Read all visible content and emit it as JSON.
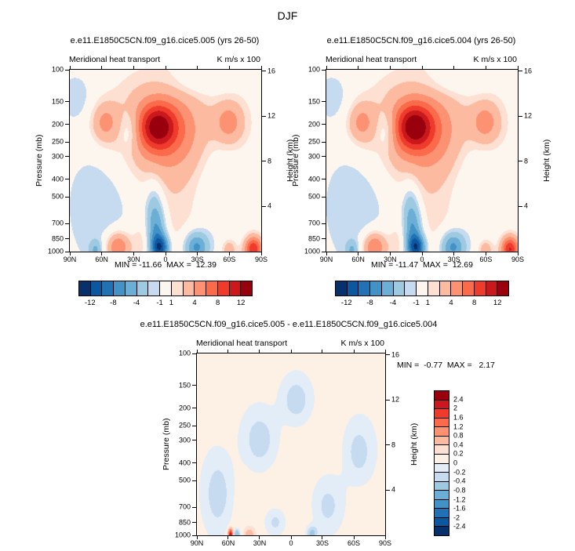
{
  "page_title": "DJF",
  "shared": {
    "subtitle_left": "Meridional heat transport",
    "subtitle_right": "K m/s x 100",
    "ylabel_left": "Pressure (mb)",
    "ylabel_right": "Height (km)",
    "pressure_ticks": [
      100,
      150,
      200,
      250,
      300,
      400,
      500,
      700,
      850,
      1000
    ],
    "height_ticks": [
      16,
      12,
      8,
      4
    ],
    "lat_ticks": [
      "90N",
      "60N",
      "30N",
      "0",
      "30S",
      "60S",
      "90S"
    ]
  },
  "chart_data": [
    {
      "type": "heatmap",
      "title": "e.e11.E1850C5CN.f09_g16.cice5.005 (yrs 26-50)",
      "subtitle": "Meridional heat transport",
      "units": "K m/s x 100",
      "x_axis": "latitude 90N to 90S",
      "y_axis": "pressure (mb), log scale 100-1000",
      "min": -11.66,
      "max": 12.39,
      "minmax_label": "MIN = -11.66  MAX =  12.39",
      "levels": [
        -12,
        -10,
        -8,
        -6,
        -4,
        -2,
        -1,
        1,
        2,
        4,
        6,
        8,
        10,
        12
      ],
      "colors": [
        "#08306b",
        "#0d57a1",
        "#2171b5",
        "#4292c6",
        "#6baed6",
        "#9ecae1",
        "#c6dbef",
        "#fdf6ee",
        "#fee0d2",
        "#fcbba1",
        "#fc9272",
        "#fb6a4a",
        "#ef3b2c",
        "#cb181d",
        "#99000d"
      ],
      "cbar_labels": [
        "-12",
        "-8",
        "-4",
        "-1",
        "1",
        "4",
        "8",
        "12"
      ],
      "features": [
        {
          "lat": 7,
          "p": 205,
          "amp": 8.0,
          "slat": 12,
          "sp": 0.085
        },
        {
          "lat": 5,
          "p": 215,
          "amp": 4.5,
          "slat": 30,
          "sp": 0.16
        },
        {
          "lat": 0,
          "p": 200,
          "amp": 1.6,
          "slat": 55,
          "sp": 0.25
        },
        {
          "lat": 58,
          "p": 195,
          "amp": 4.0,
          "slat": 9,
          "sp": 0.08
        },
        {
          "lat": -60,
          "p": 195,
          "amp": 4.5,
          "slat": 10,
          "sp": 0.085
        },
        {
          "lat": 34,
          "p": 215,
          "amp": -3.0,
          "slat": 7,
          "sp": 0.08
        },
        {
          "lat": 5,
          "p": 960,
          "amp": -10.0,
          "slat": 6,
          "sp": 0.05
        },
        {
          "lat": 8,
          "p": 780,
          "amp": -5.0,
          "slat": 6,
          "sp": 0.1
        },
        {
          "lat": 11,
          "p": 580,
          "amp": -3.0,
          "slat": 6,
          "sp": 0.12
        },
        {
          "lat": 45,
          "p": 950,
          "amp": 7.0,
          "slat": 8,
          "sp": 0.06
        },
        {
          "lat": -29,
          "p": 950,
          "amp": -7.0,
          "slat": 8,
          "sp": 0.06
        },
        {
          "lat": -83,
          "p": 975,
          "amp": 10.0,
          "slat": 6,
          "sp": 0.05
        },
        {
          "lat": -60,
          "p": 975,
          "amp": 3.5,
          "slat": 5,
          "sp": 0.04
        },
        {
          "lat": 66,
          "p": 985,
          "amp": -3.5,
          "slat": 4,
          "sp": 0.035
        },
        {
          "lat": 60,
          "p": 480,
          "amp": -2.0,
          "slat": 28,
          "sp": 0.35
        },
        {
          "lat": 85,
          "p": 140,
          "amp": -1.8,
          "slat": 12,
          "sp": 0.1
        },
        {
          "lat": -48,
          "p": 420,
          "amp": -1.8,
          "slat": 16,
          "sp": 0.3
        },
        {
          "lat": -30,
          "p": 115,
          "amp": -1.6,
          "slat": 20,
          "sp": 0.06
        },
        {
          "lat": -12,
          "p": 600,
          "amp": 1.4,
          "slat": 28,
          "sp": 0.35
        },
        {
          "lat": 24,
          "p": 900,
          "amp": 1.6,
          "slat": 6,
          "sp": 0.08
        }
      ]
    },
    {
      "type": "heatmap",
      "title": "e.e11.E1850C5CN.f09_g16.cice5.004 (yrs 26-50)",
      "subtitle": "Meridional heat transport",
      "units": "K m/s x 100",
      "x_axis": "latitude 90N to 90S",
      "y_axis": "pressure (mb), log scale 100-1000",
      "min": -11.47,
      "max": 12.69,
      "minmax_label": "MIN = -11.47  MAX =  12.69",
      "levels": [
        -12,
        -10,
        -8,
        -6,
        -4,
        -2,
        -1,
        1,
        2,
        4,
        6,
        8,
        10,
        12
      ],
      "colors": [
        "#08306b",
        "#0d57a1",
        "#2171b5",
        "#4292c6",
        "#6baed6",
        "#9ecae1",
        "#c6dbef",
        "#fdf6ee",
        "#fee0d2",
        "#fcbba1",
        "#fc9272",
        "#fb6a4a",
        "#ef3b2c",
        "#cb181d",
        "#99000d"
      ],
      "cbar_labels": [
        "-12",
        "-8",
        "-4",
        "-1",
        "1",
        "4",
        "8",
        "12"
      ],
      "features": [
        {
          "lat": 7,
          "p": 205,
          "amp": 8.3,
          "slat": 12,
          "sp": 0.085
        },
        {
          "lat": 5,
          "p": 215,
          "amp": 4.5,
          "slat": 30,
          "sp": 0.16
        },
        {
          "lat": 0,
          "p": 200,
          "amp": 1.6,
          "slat": 55,
          "sp": 0.25
        },
        {
          "lat": 58,
          "p": 195,
          "amp": 4.0,
          "slat": 9,
          "sp": 0.08
        },
        {
          "lat": -60,
          "p": 195,
          "amp": 4.5,
          "slat": 10,
          "sp": 0.085
        },
        {
          "lat": 34,
          "p": 215,
          "amp": -3.0,
          "slat": 7,
          "sp": 0.08
        },
        {
          "lat": 5,
          "p": 960,
          "amp": -9.8,
          "slat": 6,
          "sp": 0.05
        },
        {
          "lat": 8,
          "p": 780,
          "amp": -5.0,
          "slat": 6,
          "sp": 0.1
        },
        {
          "lat": 11,
          "p": 580,
          "amp": -3.0,
          "slat": 6,
          "sp": 0.12
        },
        {
          "lat": 45,
          "p": 950,
          "amp": 7.0,
          "slat": 8,
          "sp": 0.06
        },
        {
          "lat": -29,
          "p": 950,
          "amp": -7.0,
          "slat": 8,
          "sp": 0.06
        },
        {
          "lat": -83,
          "p": 975,
          "amp": 10.2,
          "slat": 6,
          "sp": 0.05
        },
        {
          "lat": -60,
          "p": 975,
          "amp": 3.5,
          "slat": 5,
          "sp": 0.04
        },
        {
          "lat": 66,
          "p": 985,
          "amp": -3.5,
          "slat": 4,
          "sp": 0.035
        },
        {
          "lat": 60,
          "p": 480,
          "amp": -2.0,
          "slat": 28,
          "sp": 0.35
        },
        {
          "lat": 85,
          "p": 140,
          "amp": -1.8,
          "slat": 12,
          "sp": 0.1
        },
        {
          "lat": -48,
          "p": 420,
          "amp": -1.8,
          "slat": 16,
          "sp": 0.3
        },
        {
          "lat": -30,
          "p": 115,
          "amp": -1.6,
          "slat": 20,
          "sp": 0.06
        },
        {
          "lat": -12,
          "p": 600,
          "amp": 1.4,
          "slat": 28,
          "sp": 0.35
        },
        {
          "lat": 24,
          "p": 900,
          "amp": 1.6,
          "slat": 6,
          "sp": 0.08
        }
      ]
    },
    {
      "type": "heatmap",
      "title": "e.e11.E1850C5CN.f09_g16.cice5.005 - e.e11.E1850C5CN.f09_g16.cice5.004",
      "subtitle": "Meridional heat transport",
      "units": "K m/s x 100",
      "x_axis": "latitude 90N to 90S",
      "y_axis": "pressure (mb), log scale 100-1000",
      "min": -0.77,
      "max": 2.17,
      "minmax_label": "MIN =  -0.77  MAX =   2.17",
      "levels": [
        -2.4,
        -2,
        -1.6,
        -1.2,
        -0.8,
        -0.4,
        -0.2,
        0,
        0.2,
        0.4,
        0.8,
        1.2,
        1.6,
        2,
        2.4
      ],
      "colors": [
        "#08306b",
        "#0d57a1",
        "#2171b5",
        "#4292c6",
        "#6baed6",
        "#9ecae1",
        "#c6dbef",
        "#e2edf8",
        "#fdf0e4",
        "#fee0d2",
        "#fcbba1",
        "#fc9272",
        "#fb6a4a",
        "#ef3b2c",
        "#cb181d",
        "#99000d"
      ],
      "cbar_labels": [
        "2.4",
        "2",
        "1.6",
        "1.2",
        "0.8",
        "0.4",
        "0.2",
        "0",
        "-0.2",
        "-0.4",
        "-0.8",
        "-1.2",
        "-1.6",
        "-2",
        "-2.4"
      ],
      "features": [
        {
          "lat": 0,
          "p": 450,
          "amp": 0.13,
          "slat": 80,
          "sp": 0.6
        },
        {
          "lat": -10,
          "p": 900,
          "amp": 0.1,
          "slat": 60,
          "sp": 0.2
        },
        {
          "lat": 58,
          "p": 990,
          "amp": 2.2,
          "slat": 1.5,
          "sp": 0.02
        },
        {
          "lat": 52,
          "p": 995,
          "amp": -0.9,
          "slat": 2,
          "sp": 0.02
        },
        {
          "lat": 30,
          "p": 300,
          "amp": -0.45,
          "slat": 12,
          "sp": 0.12
        },
        {
          "lat": -5,
          "p": 180,
          "amp": -0.45,
          "slat": 10,
          "sp": 0.09
        },
        {
          "lat": 70,
          "p": 600,
          "amp": -0.45,
          "slat": 10,
          "sp": 0.15
        },
        {
          "lat": -35,
          "p": 700,
          "amp": -0.45,
          "slat": 12,
          "sp": 0.12
        },
        {
          "lat": -65,
          "p": 350,
          "amp": -0.4,
          "slat": 10,
          "sp": 0.12
        },
        {
          "lat": 15,
          "p": 850,
          "amp": -0.45,
          "slat": 8,
          "sp": 0.06
        },
        {
          "lat": -20,
          "p": 980,
          "amp": -0.6,
          "slat": 4,
          "sp": 0.03
        },
        {
          "lat": 40,
          "p": 990,
          "amp": 0.5,
          "slat": 3,
          "sp": 0.02
        }
      ]
    }
  ]
}
